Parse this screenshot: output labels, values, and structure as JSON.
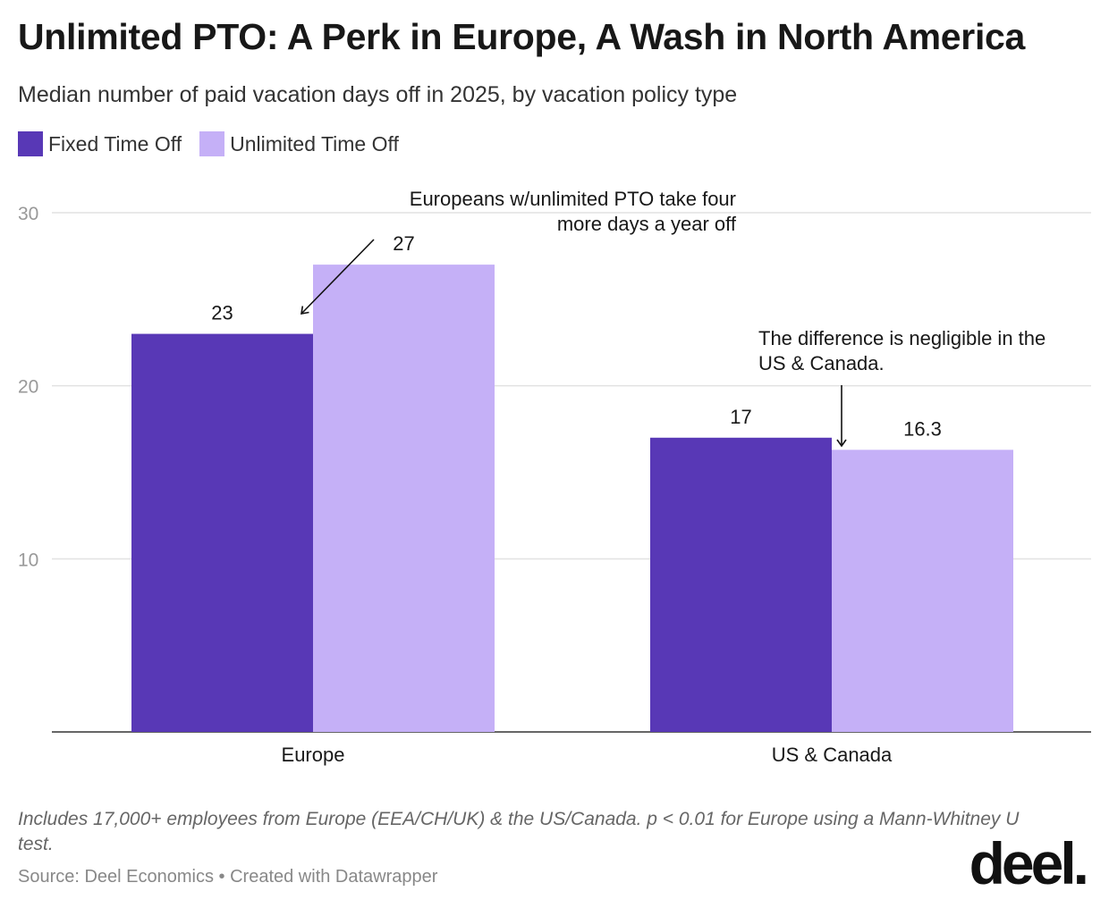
{
  "title": "Unlimited PTO: A Perk in Europe, A Wash in North America",
  "subtitle": "Median number of paid vacation days off in 2025, by vacation policy type",
  "notes": "Includes 17,000+ employees from Europe (EEA/CH/UK) & the US/Canada. p < 0.01 for Europe using a Mann-Whitney U test.",
  "source": "Source: Deel Economics • Created with Datawrapper",
  "logo": "deel.",
  "chart_data": {
    "type": "bar",
    "categories": [
      "Europe",
      "US & Canada"
    ],
    "series": [
      {
        "name": "Fixed Time Off",
        "color": "#5838b6",
        "values": [
          23,
          17
        ],
        "labels": [
          "23",
          "17"
        ]
      },
      {
        "name": "Unlimited Time Off",
        "color": "#c5b0f7",
        "values": [
          27,
          16.3
        ],
        "labels": [
          "27",
          "16.3"
        ]
      }
    ],
    "ylim": [
      0,
      30
    ],
    "yticks": [
      "10",
      "20",
      "30"
    ],
    "ytick_values": [
      10,
      20,
      30
    ],
    "grid": true,
    "legend": "top-left",
    "annotations": [
      {
        "text_lines": [
          "Europeans w/unlimited PTO take four",
          "more days a year off"
        ],
        "category": "Europe"
      },
      {
        "text_lines": [
          "The difference is negligible in the",
          "US & Canada."
        ],
        "category": "US & Canada"
      }
    ]
  }
}
